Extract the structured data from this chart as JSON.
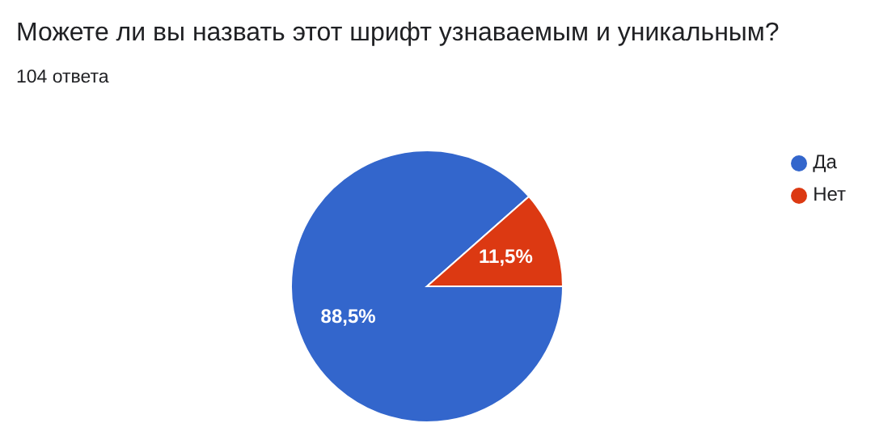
{
  "chart_data": {
    "type": "pie",
    "title": "Можете ли вы назвать этот шрифт узнаваемым и уникальным?",
    "subtitle": "104 ответа",
    "categories": [
      "Да",
      "Нет"
    ],
    "values": [
      88.5,
      11.5
    ],
    "colors": [
      "#3366cc",
      "#dc3912"
    ],
    "value_labels": [
      "88,5%",
      "11,5%"
    ],
    "legend": "top right"
  }
}
